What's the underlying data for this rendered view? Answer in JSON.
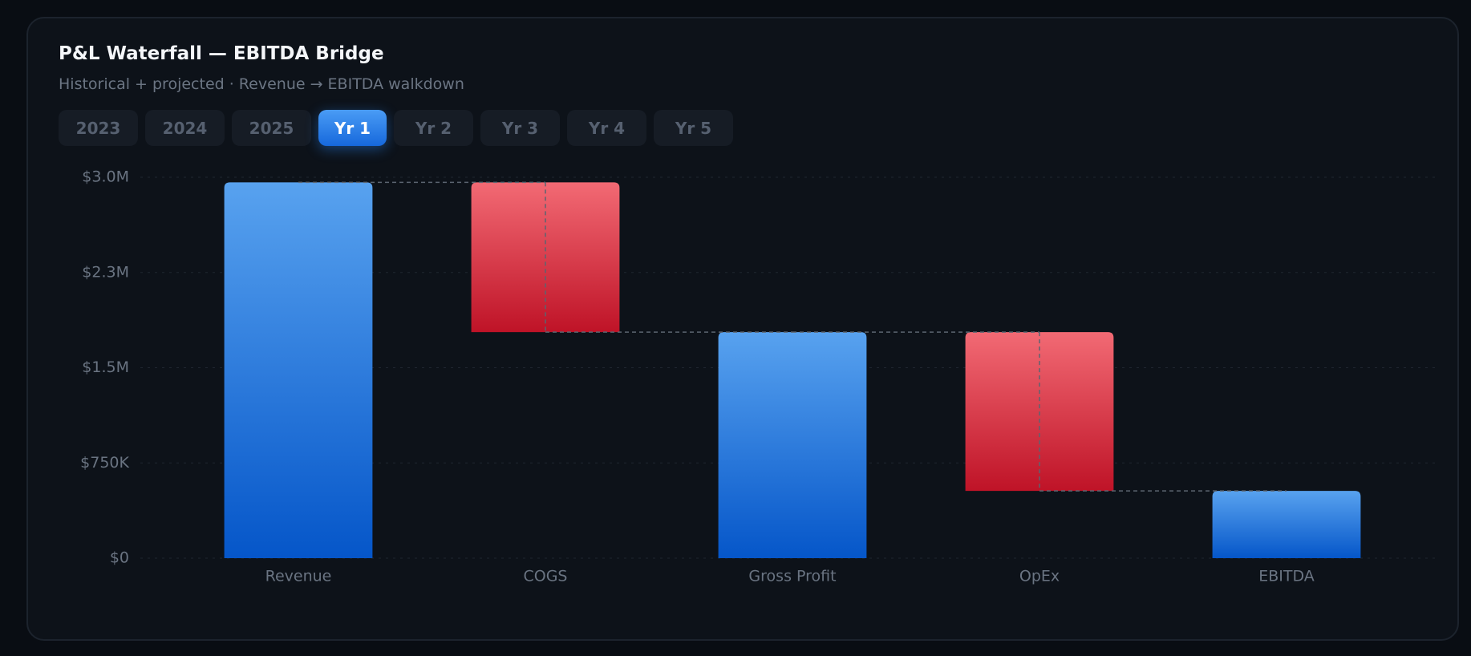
{
  "title": "P&L Waterfall — EBITDA Bridge",
  "subtitle": "Historical + projected · Revenue → EBITDA walkdown",
  "tabs": [
    {
      "label": "2023"
    },
    {
      "label": "2024"
    },
    {
      "label": "2025"
    },
    {
      "label": "Yr 1",
      "active": true
    },
    {
      "label": "Yr 2"
    },
    {
      "label": "Yr 3"
    },
    {
      "label": "Yr 4"
    },
    {
      "label": "Yr 5"
    }
  ],
  "chart_data": {
    "type": "waterfall",
    "categories": [
      "Revenue",
      "COGS",
      "Gross Profit",
      "OpEx",
      "EBITDA"
    ],
    "values": [
      2960000,
      -1180000,
      1780000,
      -1250000,
      530000
    ],
    "color": [
      "#58a2ef",
      "#0556c9"
    ],
    "negative_color": [
      "#f26a74",
      "#bf1327"
    ],
    "ylim": [
      0,
      3000000
    ],
    "yticks": [
      {
        "value": 0,
        "label": "$0"
      },
      {
        "value": 750000,
        "label": "$750K"
      },
      {
        "value": 1500000,
        "label": "$1.5M"
      },
      {
        "value": 2250000,
        "label": "$2.3M"
      },
      {
        "value": 3000000,
        "label": "$3.0M"
      }
    ],
    "grid": true
  }
}
